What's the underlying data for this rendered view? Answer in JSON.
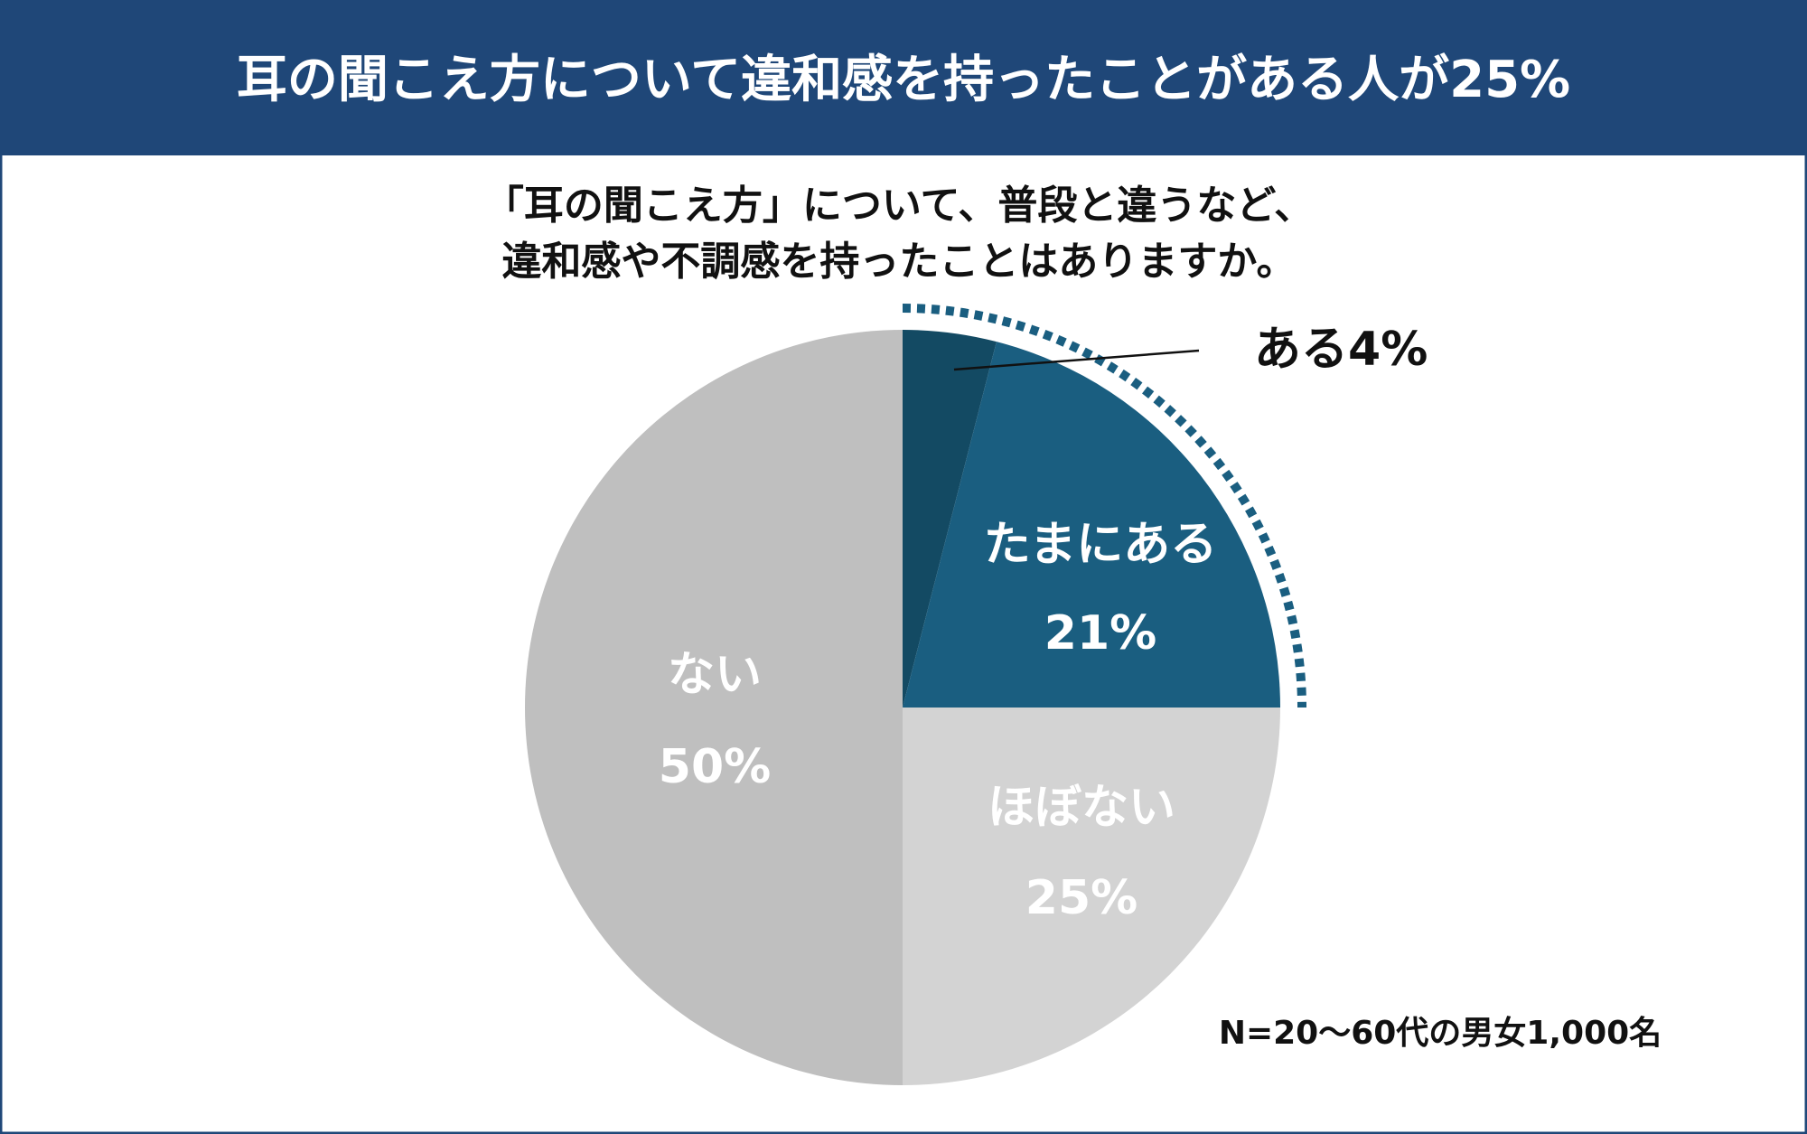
{
  "chart_data": {
    "type": "pie",
    "title": "耳の聞こえ方について違和感を持ったことがある人が25%",
    "subtitle": [
      "「耳の聞こえ方」について、普段と違うなど、",
      "違和感や不調感を持ったことはありますか。"
    ],
    "categories": [
      "ある",
      "たまにある",
      "ほぼない",
      "ない"
    ],
    "values": [
      4,
      21,
      25,
      50
    ],
    "value_labels": [
      "4%",
      "21%",
      "25%",
      "50%"
    ],
    "colors": [
      "#134a63",
      "#1a5e80",
      "#d3d3d3",
      "#bfbfbf"
    ],
    "note": "N=20〜60代の男女1,000名"
  }
}
